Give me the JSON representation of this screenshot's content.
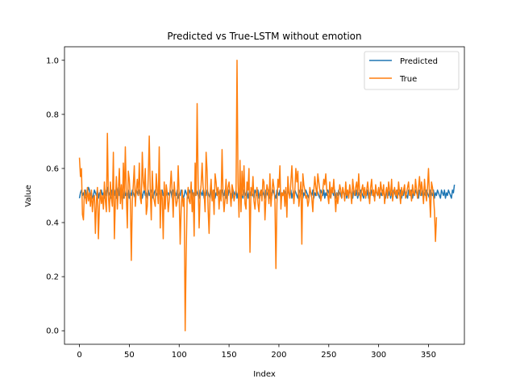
{
  "chart_data": {
    "type": "line",
    "title": "Predicted vs True-LSTM without emotion",
    "xlabel": "Index",
    "ylabel": "Value",
    "xlim": [
      -15,
      386
    ],
    "ylim": [
      -0.05,
      1.05
    ],
    "xticks": [
      0,
      50,
      100,
      150,
      200,
      250,
      300,
      350
    ],
    "yticks": [
      0.0,
      0.2,
      0.4,
      0.6,
      0.8,
      1.0
    ],
    "ytick_labels": [
      "0.0",
      "0.2",
      "0.4",
      "0.6",
      "0.8",
      "1.0"
    ],
    "grid": false,
    "legend_position": "upper right",
    "series_colors": {
      "predicted": "#1f77b4",
      "true": "#ff7f0e"
    },
    "series": [
      {
        "name": "Predicted",
        "color": "#1f77b4",
        "x_start": 0,
        "values": [
          0.49,
          0.51,
          0.52,
          0.5,
          0.51,
          0.49,
          0.52,
          0.5,
          0.51,
          0.53,
          0.52,
          0.5,
          0.51,
          0.49,
          0.5,
          0.52,
          0.51,
          0.5,
          0.52,
          0.49,
          0.51,
          0.5,
          0.52,
          0.5,
          0.51,
          0.49,
          0.5,
          0.52,
          0.53,
          0.5,
          0.51,
          0.49,
          0.52,
          0.5,
          0.51,
          0.5,
          0.52,
          0.49,
          0.51,
          0.53,
          0.5,
          0.52,
          0.5,
          0.51,
          0.49,
          0.52,
          0.5,
          0.51,
          0.5,
          0.52,
          0.49,
          0.51,
          0.5,
          0.52,
          0.51,
          0.5,
          0.49,
          0.52,
          0.51,
          0.5,
          0.52,
          0.5,
          0.51,
          0.49,
          0.51,
          0.52,
          0.5,
          0.51,
          0.49,
          0.52,
          0.5,
          0.51,
          0.52,
          0.5,
          0.49,
          0.51,
          0.52,
          0.5,
          0.51,
          0.5,
          0.52,
          0.49,
          0.51,
          0.52,
          0.5,
          0.51,
          0.49,
          0.52,
          0.5,
          0.51,
          0.5,
          0.52,
          0.51,
          0.49,
          0.52,
          0.5,
          0.51,
          0.5,
          0.52,
          0.49,
          0.51,
          0.5,
          0.52,
          0.51,
          0.49,
          0.5,
          0.52,
          0.51,
          0.5,
          0.49,
          0.52,
          0.51,
          0.5,
          0.52,
          0.49,
          0.51,
          0.5,
          0.52,
          0.51,
          0.5,
          0.49,
          0.52,
          0.51,
          0.5,
          0.52,
          0.49,
          0.51,
          0.5,
          0.52,
          0.51,
          0.5,
          0.49,
          0.52,
          0.51,
          0.5,
          0.52,
          0.49,
          0.51,
          0.5,
          0.52,
          0.51,
          0.5,
          0.49,
          0.52,
          0.51,
          0.5,
          0.52,
          0.49,
          0.51,
          0.5,
          0.52,
          0.51,
          0.5,
          0.49,
          0.52,
          0.51,
          0.5,
          0.52,
          0.49,
          0.51,
          0.5,
          0.52,
          0.51,
          0.5,
          0.49,
          0.52,
          0.51,
          0.5,
          0.52,
          0.49,
          0.51,
          0.5,
          0.52,
          0.51,
          0.5,
          0.49,
          0.52,
          0.51,
          0.5,
          0.52,
          0.49,
          0.51,
          0.5,
          0.52,
          0.51,
          0.5,
          0.49,
          0.52,
          0.51,
          0.5,
          0.52,
          0.49,
          0.51,
          0.5,
          0.52,
          0.51,
          0.5,
          0.49,
          0.52,
          0.51,
          0.5,
          0.52,
          0.49,
          0.51,
          0.5,
          0.52,
          0.51,
          0.5,
          0.49,
          0.52,
          0.51,
          0.5,
          0.52,
          0.49,
          0.51,
          0.5,
          0.52,
          0.51,
          0.5,
          0.49,
          0.52,
          0.51,
          0.5,
          0.52,
          0.49,
          0.51,
          0.5,
          0.52,
          0.51,
          0.5,
          0.49,
          0.52,
          0.51,
          0.5,
          0.52,
          0.49,
          0.51,
          0.5,
          0.52,
          0.51,
          0.5,
          0.49,
          0.52,
          0.51,
          0.5,
          0.52,
          0.49,
          0.51,
          0.5,
          0.52,
          0.51,
          0.5,
          0.49,
          0.52,
          0.51,
          0.5,
          0.52,
          0.49,
          0.51,
          0.5,
          0.52,
          0.51,
          0.5,
          0.49,
          0.52,
          0.51,
          0.5,
          0.52,
          0.49,
          0.51,
          0.5,
          0.52,
          0.51,
          0.5,
          0.49,
          0.52,
          0.51,
          0.5,
          0.52,
          0.49,
          0.51,
          0.5,
          0.52,
          0.51,
          0.5,
          0.49,
          0.52,
          0.51,
          0.5,
          0.52,
          0.49,
          0.51,
          0.5,
          0.52,
          0.51,
          0.5,
          0.49,
          0.52,
          0.51,
          0.5,
          0.52,
          0.49,
          0.51,
          0.5,
          0.52,
          0.51,
          0.5,
          0.49,
          0.52,
          0.51,
          0.5,
          0.52,
          0.49,
          0.51,
          0.5,
          0.52,
          0.51,
          0.5,
          0.49,
          0.52,
          0.51,
          0.5,
          0.52,
          0.49,
          0.51,
          0.5,
          0.52,
          0.51,
          0.5,
          0.49,
          0.52,
          0.51,
          0.5,
          0.52,
          0.49,
          0.51,
          0.5,
          0.52,
          0.51,
          0.5,
          0.49,
          0.52,
          0.51,
          0.5,
          0.52,
          0.49,
          0.51,
          0.5,
          0.52,
          0.51,
          0.5,
          0.49,
          0.52,
          0.51,
          0.5,
          0.52,
          0.49,
          0.51,
          0.5,
          0.52,
          0.51,
          0.5,
          0.49,
          0.52,
          0.51,
          0.5,
          0.52,
          0.49,
          0.51,
          0.5,
          0.52,
          0.51,
          0.5,
          0.49,
          0.52,
          0.51,
          0.54
        ]
      },
      {
        "name": "True",
        "color": "#ff7f0e",
        "x_start": 0,
        "values": [
          0.64,
          0.57,
          0.6,
          0.43,
          0.41,
          0.52,
          0.5,
          0.47,
          0.53,
          0.48,
          0.51,
          0.46,
          0.52,
          0.44,
          0.49,
          0.5,
          0.36,
          0.48,
          0.53,
          0.34,
          0.46,
          0.52,
          0.47,
          0.5,
          0.45,
          0.55,
          0.48,
          0.44,
          0.73,
          0.5,
          0.44,
          0.55,
          0.49,
          0.46,
          0.66,
          0.34,
          0.48,
          0.57,
          0.45,
          0.52,
          0.6,
          0.47,
          0.54,
          0.45,
          0.62,
          0.49,
          0.68,
          0.5,
          0.38,
          0.59,
          0.56,
          0.49,
          0.26,
          0.48,
          0.54,
          0.61,
          0.46,
          0.52,
          0.56,
          0.5,
          0.62,
          0.49,
          0.47,
          0.66,
          0.55,
          0.52,
          0.6,
          0.43,
          0.46,
          0.57,
          0.72,
          0.52,
          0.41,
          0.59,
          0.5,
          0.48,
          0.46,
          0.58,
          0.52,
          0.47,
          0.68,
          0.38,
          0.52,
          0.49,
          0.34,
          0.55,
          0.45,
          0.54,
          0.51,
          0.44,
          0.48,
          0.53,
          0.59,
          0.51,
          0.42,
          0.55,
          0.5,
          0.46,
          0.48,
          0.61,
          0.5,
          0.32,
          0.45,
          0.52,
          0.46,
          0.49,
          0.0,
          0.28,
          0.49,
          0.53,
          0.48,
          0.47,
          0.55,
          0.44,
          0.51,
          0.35,
          0.62,
          0.5,
          0.84,
          0.55,
          0.38,
          0.5,
          0.54,
          0.62,
          0.53,
          0.51,
          0.44,
          0.66,
          0.59,
          0.45,
          0.36,
          0.51,
          0.56,
          0.48,
          0.52,
          0.43,
          0.58,
          0.55,
          0.5,
          0.53,
          0.45,
          0.52,
          0.48,
          0.67,
          0.5,
          0.44,
          0.49,
          0.56,
          0.47,
          0.53,
          0.55,
          0.51,
          0.46,
          0.54,
          0.52,
          0.48,
          0.5,
          0.51,
          1.0,
          0.55,
          0.42,
          0.63,
          0.44,
          0.59,
          0.5,
          0.61,
          0.47,
          0.45,
          0.55,
          0.52,
          0.6,
          0.29,
          0.53,
          0.5,
          0.57,
          0.48,
          0.45,
          0.5,
          0.53,
          0.47,
          0.44,
          0.51,
          0.52,
          0.48,
          0.56,
          0.55,
          0.41,
          0.49,
          0.54,
          0.52,
          0.47,
          0.58,
          0.46,
          0.51,
          0.56,
          0.53,
          0.48,
          0.23,
          0.47,
          0.56,
          0.53,
          0.61,
          0.45,
          0.51,
          0.5,
          0.52,
          0.46,
          0.53,
          0.42,
          0.57,
          0.51,
          0.49,
          0.55,
          0.61,
          0.53,
          0.47,
          0.52,
          0.6,
          0.55,
          0.59,
          0.46,
          0.5,
          0.55,
          0.32,
          0.58,
          0.54,
          0.52,
          0.49,
          0.5,
          0.46,
          0.48,
          0.53,
          0.51,
          0.49,
          0.44,
          0.52,
          0.57,
          0.53,
          0.5,
          0.58,
          0.55,
          0.52,
          0.48,
          0.5,
          0.52,
          0.56,
          0.54,
          0.58,
          0.52,
          0.5,
          0.47,
          0.55,
          0.49,
          0.53,
          0.51,
          0.56,
          0.5,
          0.44,
          0.51,
          0.47,
          0.5,
          0.54,
          0.52,
          0.49,
          0.53,
          0.51,
          0.48,
          0.55,
          0.5,
          0.52,
          0.49,
          0.54,
          0.51,
          0.47,
          0.56,
          0.52,
          0.5,
          0.53,
          0.55,
          0.5,
          0.58,
          0.51,
          0.48,
          0.52,
          0.54,
          0.5,
          0.53,
          0.49,
          0.52,
          0.55,
          0.51,
          0.47,
          0.53,
          0.56,
          0.5,
          0.52,
          0.48,
          0.54,
          0.51,
          0.5,
          0.53,
          0.49,
          0.55,
          0.52,
          0.5,
          0.54,
          0.47,
          0.51,
          0.53,
          0.49,
          0.55,
          0.52,
          0.5,
          0.56,
          0.48,
          0.51,
          0.53,
          0.5,
          0.52,
          0.49,
          0.55,
          0.51,
          0.47,
          0.53,
          0.5,
          0.52,
          0.54,
          0.49,
          0.51,
          0.53,
          0.55,
          0.5,
          0.52,
          0.48,
          0.54,
          0.51,
          0.5,
          0.56,
          0.52,
          0.49,
          0.53,
          0.57,
          0.5,
          0.55,
          0.52,
          0.47,
          0.56,
          0.51,
          0.48,
          0.53,
          0.6,
          0.5,
          0.42,
          0.55,
          0.53,
          0.5,
          0.44,
          0.33,
          0.42
        ]
      }
    ]
  }
}
